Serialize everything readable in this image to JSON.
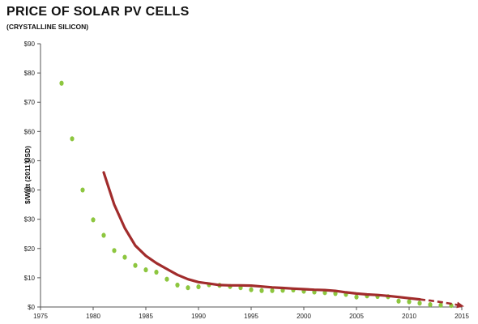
{
  "chart_data": {
    "type": "scatter",
    "title": "PRICE OF SOLAR PV CELLS",
    "subtitle": "(CRYSTALLINE SILICON)",
    "xlabel": "",
    "ylabel": "$/Watt (2011 USD)",
    "xlim": [
      1975,
      2015
    ],
    "ylim": [
      0,
      90
    ],
    "x_ticks": [
      1975,
      1980,
      1985,
      1990,
      1995,
      2000,
      2005,
      2010,
      2015
    ],
    "y_ticks": [
      0,
      10,
      20,
      30,
      40,
      50,
      60,
      70,
      80,
      90
    ],
    "y_tick_labels": [
      "$0",
      "$10",
      "$20",
      "$30",
      "$40",
      "$50",
      "$60",
      "$70",
      "$80",
      "$90"
    ],
    "grid": false,
    "legend": "none",
    "series": [
      {
        "type": "scatter",
        "color": "#8dc63f",
        "x": [
          1977,
          1978,
          1979,
          1980,
          1981,
          1982,
          1983,
          1984,
          1985,
          1986,
          1987,
          1988,
          1989,
          1990,
          1991,
          1992,
          1993,
          1994,
          1995,
          1996,
          1997,
          1998,
          1999,
          2000,
          2001,
          2002,
          2003,
          2004,
          2005,
          2006,
          2007,
          2008,
          2009,
          2010,
          2011,
          2012,
          2013,
          2014
        ],
        "y": [
          76.5,
          57.5,
          40.0,
          29.8,
          24.5,
          19.3,
          17.0,
          14.2,
          12.7,
          11.9,
          9.5,
          7.5,
          6.6,
          6.9,
          7.6,
          7.4,
          7.0,
          6.6,
          5.9,
          5.6,
          5.6,
          5.7,
          5.8,
          5.4,
          5.1,
          4.9,
          4.6,
          4.3,
          3.4,
          3.8,
          3.6,
          3.5,
          2.0,
          1.8,
          1.3,
          0.8,
          0.6,
          0.5
        ]
      },
      {
        "type": "line",
        "color": "#a12c2c",
        "x": [
          1981,
          1982,
          1983,
          1984,
          1985,
          1986,
          1987,
          1988,
          1989,
          1990,
          1991,
          1992,
          1993,
          1994,
          1995,
          1996,
          1997,
          1998,
          1999,
          2000,
          2001,
          2002,
          2003,
          2004,
          2005,
          2006,
          2007,
          2008,
          2009,
          2010,
          2011
        ],
        "y": [
          46,
          35,
          27,
          21,
          17.5,
          15,
          13,
          11,
          9.5,
          8.5,
          8,
          7.5,
          7.4,
          7.4,
          7.3,
          7,
          6.7,
          6.5,
          6.3,
          6.1,
          5.9,
          5.8,
          5.5,
          5.0,
          4.6,
          4.3,
          4.1,
          3.8,
          3.4,
          3.0,
          2.6
        ]
      },
      {
        "type": "line-dashed",
        "color": "#a12c2c",
        "x": [
          2011,
          2012,
          2013,
          2014,
          2015
        ],
        "y": [
          2.6,
          2.2,
          1.7,
          1.1,
          0.4
        ]
      }
    ]
  }
}
